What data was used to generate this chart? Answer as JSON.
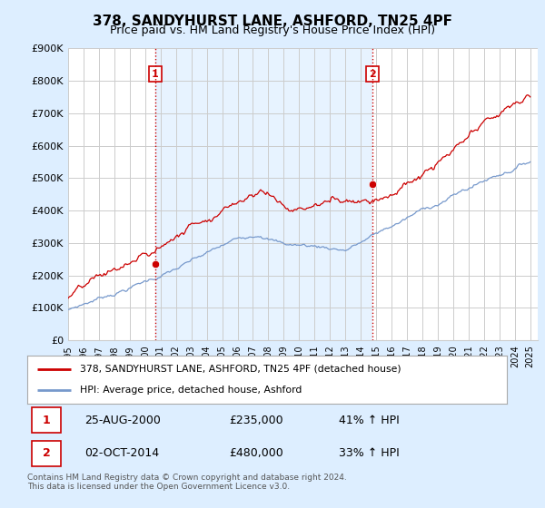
{
  "title": "378, SANDYHURST LANE, ASHFORD, TN25 4PF",
  "subtitle": "Price paid vs. HM Land Registry's House Price Index (HPI)",
  "ylabel_ticks": [
    "£0",
    "£100K",
    "£200K",
    "£300K",
    "£400K",
    "£500K",
    "£600K",
    "£700K",
    "£800K",
    "£900K"
  ],
  "ytick_values": [
    0,
    100000,
    200000,
    300000,
    400000,
    500000,
    600000,
    700000,
    800000,
    900000
  ],
  "ylim": [
    0,
    900000
  ],
  "xlim_start": 1995.3,
  "xlim_end": 2025.5,
  "xtick_years": [
    1995,
    1996,
    1997,
    1998,
    1999,
    2000,
    2001,
    2002,
    2003,
    2004,
    2005,
    2006,
    2007,
    2008,
    2009,
    2010,
    2011,
    2012,
    2013,
    2014,
    2015,
    2016,
    2017,
    2018,
    2019,
    2020,
    2021,
    2022,
    2023,
    2024,
    2025
  ],
  "purchase_1_x": 2000.65,
  "purchase_1_y": 235000,
  "purchase_1_label": "1",
  "purchase_1_date": "25-AUG-2000",
  "purchase_1_price": "£235,000",
  "purchase_1_hpi": "41% ↑ HPI",
  "purchase_2_x": 2014.75,
  "purchase_2_y": 480000,
  "purchase_2_label": "2",
  "purchase_2_date": "02-OCT-2014",
  "purchase_2_price": "£480,000",
  "purchase_2_hpi": "33% ↑ HPI",
  "line1_color": "#cc0000",
  "line2_color": "#7799cc",
  "vline_color": "#cc0000",
  "grid_color": "#cccccc",
  "bg_color": "#ddeeff",
  "plot_bg_color": "#ffffff",
  "shade_color": "#ddeeff",
  "legend_line1": "378, SANDYHURST LANE, ASHFORD, TN25 4PF (detached house)",
  "legend_line2": "HPI: Average price, detached house, Ashford",
  "footer": "Contains HM Land Registry data © Crown copyright and database right 2024.\nThis data is licensed under the Open Government Licence v3.0."
}
